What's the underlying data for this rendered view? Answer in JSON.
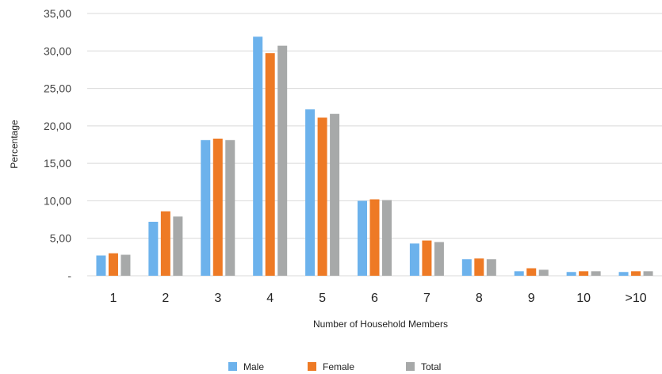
{
  "chart_data": {
    "type": "bar",
    "xlabel": "Number of Household Members",
    "ylabel": "Percentage",
    "ylim": [
      0,
      35
    ],
    "yticks": [
      0,
      5,
      10,
      15,
      20,
      25,
      30,
      35
    ],
    "ytick_labels": [
      "-",
      "5,00",
      "10,00",
      "15,00",
      "20,00",
      "25,00",
      "30,00",
      "35,00"
    ],
    "grid": true,
    "legend_position": "bottom",
    "categories": [
      "1",
      "2",
      "3",
      "4",
      "5",
      "6",
      "7",
      "8",
      "9",
      "10",
      ">10"
    ],
    "series": [
      {
        "name": "Male",
        "color": "#6cb2ec",
        "values": [
          2.7,
          7.2,
          18.1,
          31.9,
          22.2,
          10.0,
          4.3,
          2.2,
          0.6,
          0.5,
          0.5
        ]
      },
      {
        "name": "Female",
        "color": "#ee7a25",
        "values": [
          3.0,
          8.6,
          18.3,
          29.7,
          21.1,
          10.2,
          4.7,
          2.3,
          1.0,
          0.6,
          0.6
        ]
      },
      {
        "name": "Total",
        "color": "#a7a9a9",
        "values": [
          2.8,
          7.9,
          18.1,
          30.7,
          21.6,
          10.1,
          4.5,
          2.2,
          0.8,
          0.6,
          0.6
        ]
      }
    ]
  }
}
